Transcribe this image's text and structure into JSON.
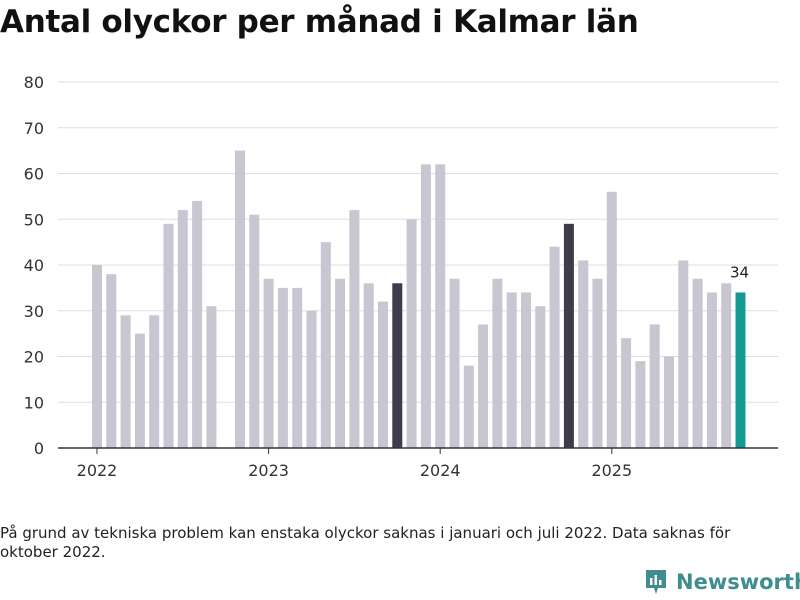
{
  "title": "Antal olyckor per månad i Kalmar län",
  "footnote": "På grund av tekniska problem kan enstaka olyckor saknas i januari och juli 2022. Data saknas för oktober 2022.",
  "brand": {
    "name": "Newsworthy",
    "icon": "newsworthy-logo-icon"
  },
  "colors": {
    "default": "#c8c6d0",
    "highlight": "#3c3c4a",
    "latest": "#139b93",
    "grid": "#dddddd",
    "axis": "#333333"
  },
  "chart_data": {
    "type": "bar",
    "title": "Antal olyckor per månad i Kalmar län",
    "xlabel": "",
    "ylabel": "",
    "ylim": [
      0,
      80
    ],
    "yticks": [
      0,
      10,
      20,
      30,
      40,
      50,
      60,
      70,
      80
    ],
    "year_labels": [
      "2022",
      "2023",
      "2024",
      "2025"
    ],
    "grid": true,
    "months": [
      "2022-01",
      "2022-02",
      "2022-03",
      "2022-04",
      "2022-05",
      "2022-06",
      "2022-07",
      "2022-08",
      "2022-09",
      "2022-10",
      "2022-11",
      "2022-12",
      "2023-01",
      "2023-02",
      "2023-03",
      "2023-04",
      "2023-05",
      "2023-06",
      "2023-07",
      "2023-08",
      "2023-09",
      "2023-10",
      "2023-11",
      "2023-12",
      "2024-01",
      "2024-02",
      "2024-03",
      "2024-04",
      "2024-05",
      "2024-06",
      "2024-07",
      "2024-08",
      "2024-09",
      "2024-10",
      "2024-11",
      "2024-12",
      "2025-01",
      "2025-02",
      "2025-03",
      "2025-04",
      "2025-05",
      "2025-06",
      "2025-07",
      "2025-08",
      "2025-09",
      "2025-10"
    ],
    "values": [
      40,
      38,
      29,
      25,
      29,
      49,
      52,
      54,
      31,
      null,
      65,
      51,
      37,
      35,
      35,
      30,
      45,
      37,
      52,
      36,
      32,
      36,
      50,
      62,
      62,
      37,
      18,
      27,
      37,
      34,
      34,
      31,
      44,
      49,
      41,
      37,
      56,
      24,
      19,
      27,
      20,
      41,
      37,
      34,
      36,
      34
    ],
    "highlighted": [
      "2023-10",
      "2024-10"
    ],
    "latest": "2025-10",
    "latest_label": "34"
  }
}
